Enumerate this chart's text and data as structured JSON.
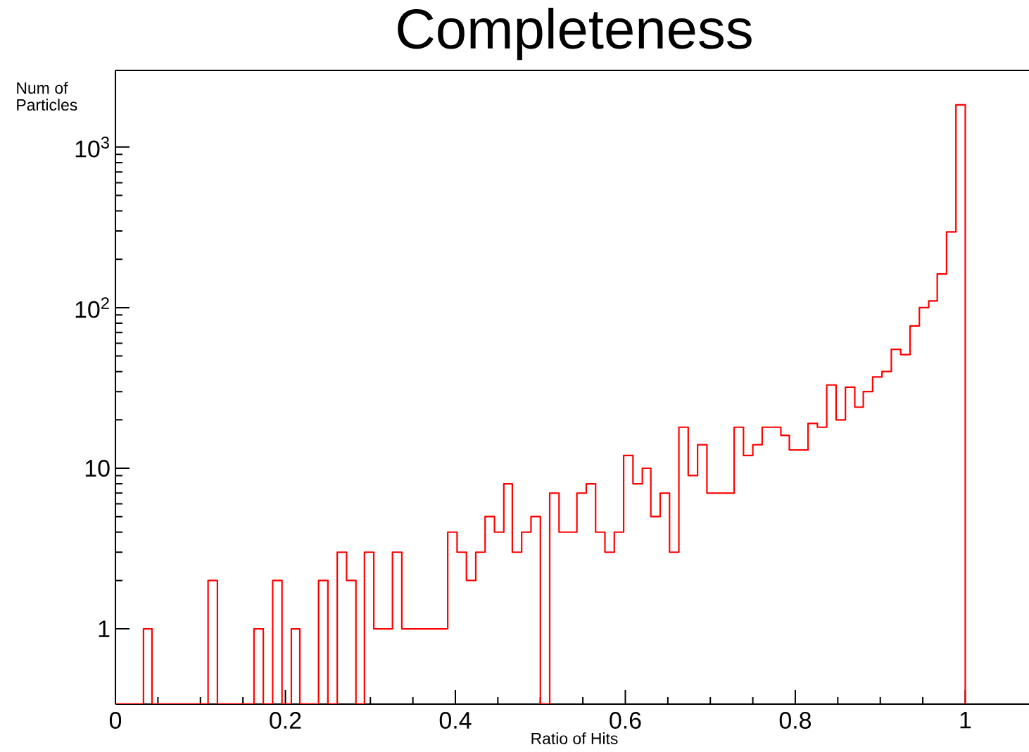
{
  "chart_data": {
    "type": "histogram",
    "title": "Completeness",
    "xlabel": "Ratio of Hits",
    "ylabel": "Num of Particles",
    "color": "#ff0000",
    "log": "y",
    "bins": [
      0,
      0.011,
      0.022,
      0.033,
      0.043,
      0.054,
      0.065,
      0.076,
      0.087,
      0.098,
      0.109,
      0.12,
      0.13,
      0.141,
      0.152,
      0.163,
      0.174,
      0.185,
      0.196,
      0.207,
      0.217,
      0.228,
      0.239,
      0.25,
      0.261,
      0.272,
      0.283,
      0.293,
      0.304,
      0.315,
      0.326,
      0.337,
      0.348,
      0.359,
      0.37,
      0.38,
      0.391,
      0.402,
      0.413,
      0.424,
      0.435,
      0.446,
      0.457,
      0.467,
      0.478,
      0.489,
      0.5,
      0.511,
      0.522,
      0.533,
      0.543,
      0.554,
      0.565,
      0.576,
      0.587,
      0.598,
      0.609,
      0.62,
      0.63,
      0.641,
      0.652,
      0.663,
      0.674,
      0.685,
      0.696,
      0.707,
      0.717,
      0.728,
      0.739,
      0.75,
      0.761,
      0.772,
      0.783,
      0.793,
      0.804,
      0.815,
      0.826,
      0.837,
      0.848,
      0.859,
      0.87,
      0.88,
      0.891,
      0.902,
      0.913,
      0.924,
      0.935,
      0.946,
      0.957,
      0.967,
      0.978,
      0.989,
      1
    ],
    "values": [
      null,
      null,
      null,
      1,
      null,
      null,
      null,
      null,
      null,
      null,
      2,
      null,
      null,
      null,
      null,
      1,
      null,
      2,
      null,
      1,
      null,
      null,
      2,
      null,
      3,
      2,
      null,
      3,
      1,
      1,
      3,
      1,
      1,
      1,
      1,
      1,
      4,
      3,
      2,
      3,
      5,
      4,
      8,
      3,
      4,
      5,
      null,
      7,
      4,
      4,
      7,
      8,
      4,
      3,
      4,
      12,
      8,
      10,
      5,
      7,
      3,
      18,
      9,
      14,
      7,
      7,
      7,
      18,
      12,
      14,
      18,
      18,
      16,
      13,
      13,
      19,
      18,
      33,
      20,
      32,
      24,
      30,
      37,
      40,
      55,
      51,
      77,
      100,
      110,
      162,
      296,
      1830
    ],
    "xlim": [
      0,
      1.075
    ],
    "ylim": [
      0.34,
      3000
    ],
    "xticks": [
      0,
      0.2,
      0.4,
      0.6,
      0.8,
      1
    ],
    "yticks": [
      1,
      10,
      {
        "value": 100,
        "label": "10$^{2}$"
      },
      {
        "value": 1000,
        "label": "10$^{3}$"
      }
    ]
  }
}
